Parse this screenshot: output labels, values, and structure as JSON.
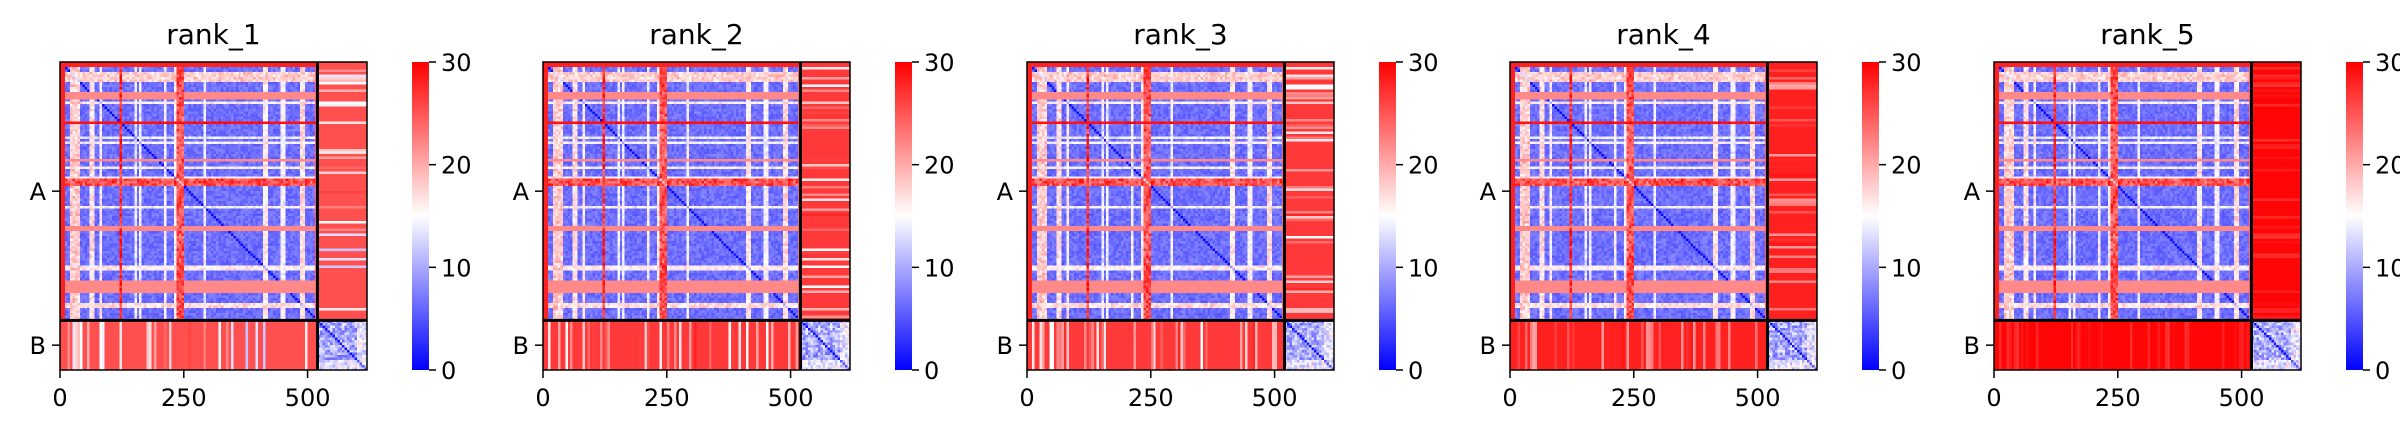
{
  "chart_data": {
    "type": "heatmap",
    "colormap": {
      "name": "bwr",
      "low": "#0000ff",
      "mid": "#ffffff",
      "high": "#ff0000"
    },
    "colorbar": {
      "vmin": 0,
      "vmax": 30,
      "ticks": [
        0,
        10,
        20,
        30
      ]
    },
    "x_ticks": [
      0,
      250,
      500
    ],
    "x_range": [
      0,
      620
    ],
    "chains": [
      {
        "label": "A",
        "start": 0,
        "end": 520
      },
      {
        "label": "B",
        "start": 520,
        "end": 620
      }
    ],
    "panels": [
      {
        "title": "rank_1",
        "ab_level": 27,
        "ab_contrast": 0.55
      },
      {
        "title": "rank_2",
        "ab_level": 28,
        "ab_contrast": 0.45
      },
      {
        "title": "rank_3",
        "ab_level": 28,
        "ab_contrast": 0.45
      },
      {
        "title": "rank_4",
        "ab_level": 29,
        "ab_contrast": 0.3
      },
      {
        "title": "rank_5",
        "ab_level": 30,
        "ab_contrast": 0.1
      }
    ]
  }
}
